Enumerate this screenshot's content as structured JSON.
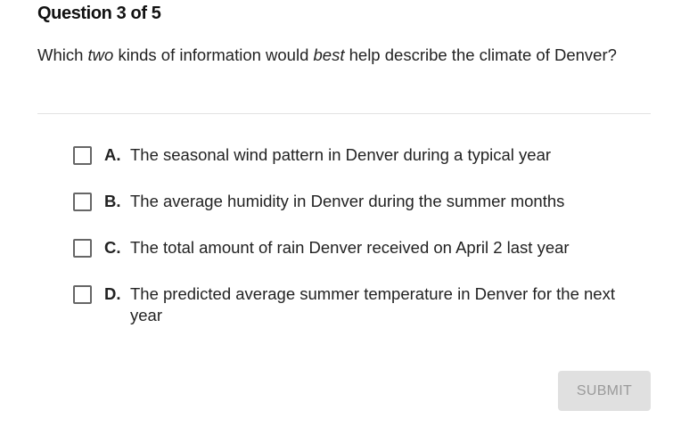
{
  "header": {
    "title": "Question 3 of 5"
  },
  "question": {
    "segments": [
      {
        "text": "Which ",
        "italic": false
      },
      {
        "text": "two",
        "italic": true
      },
      {
        "text": " kinds of information would ",
        "italic": false
      },
      {
        "text": "best",
        "italic": true
      },
      {
        "text": " help describe the climate of Denver?",
        "italic": false
      }
    ]
  },
  "options": [
    {
      "letter": "A.",
      "text": "The seasonal wind pattern in Denver during a typical year",
      "checked": false
    },
    {
      "letter": "B.",
      "text": "The average humidity in Denver during the summer months",
      "checked": false
    },
    {
      "letter": "C.",
      "text": "The total amount of rain Denver received on April 2 last year",
      "checked": false
    },
    {
      "letter": "D.",
      "text": "The predicted average summer temperature in Denver for the next year",
      "checked": false
    }
  ],
  "submit": {
    "label": "SUBMIT",
    "enabled": false
  }
}
